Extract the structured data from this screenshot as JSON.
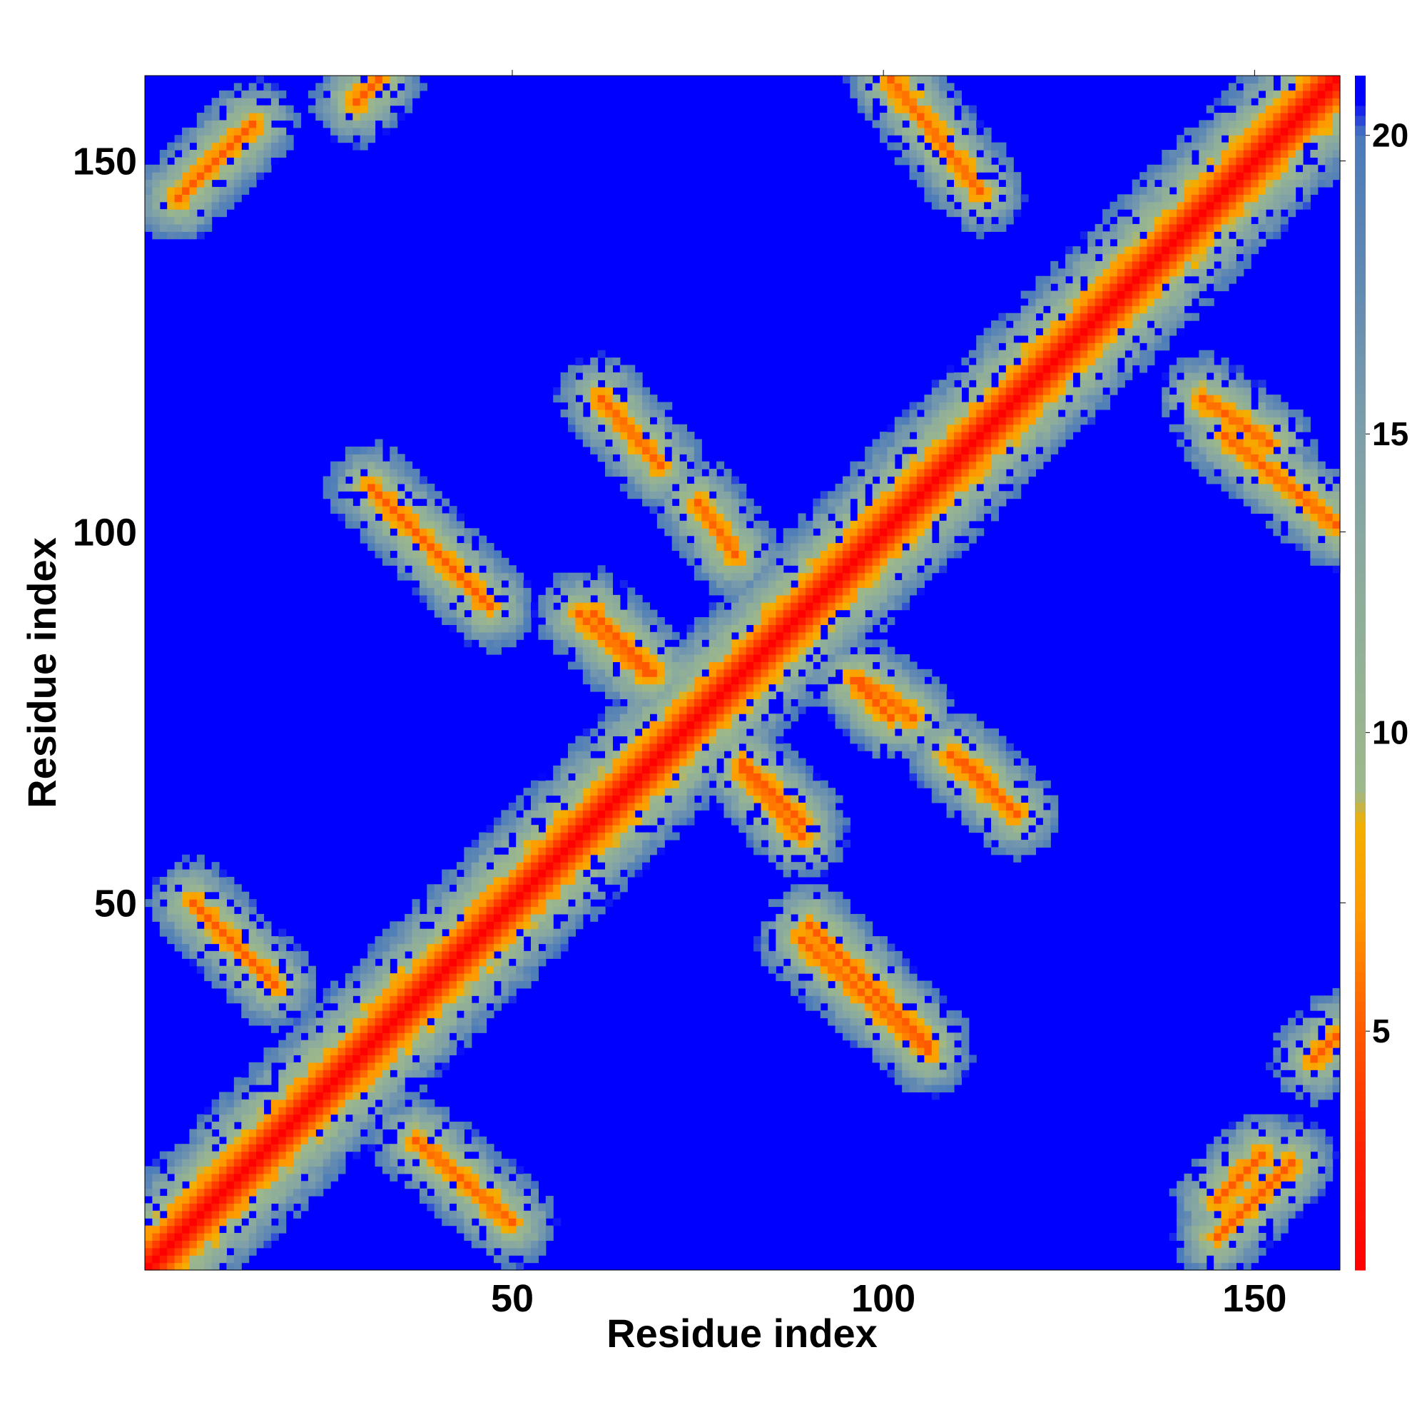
{
  "chart_data": {
    "type": "heatmap",
    "title": "",
    "xlabel": "Residue index",
    "ylabel": "Residue index",
    "x_range": [
      1,
      161
    ],
    "y_range": [
      1,
      161
    ],
    "x_ticks": [
      50,
      100,
      150
    ],
    "y_ticks": [
      50,
      100,
      150
    ],
    "x_tick_labels": [
      "50",
      "100",
      "150"
    ],
    "y_tick_labels": [
      "50",
      "100",
      "150"
    ],
    "grid": false,
    "legend": "colorbar at right",
    "colorbar": {
      "range": [
        1,
        21
      ],
      "ticks": [
        5,
        10,
        15,
        20
      ],
      "tick_labels": [
        "5",
        "10",
        "15",
        "20"
      ],
      "stops": [
        {
          "value": 1,
          "color": "#ff0000"
        },
        {
          "value": 3,
          "color": "#ff2200"
        },
        {
          "value": 5,
          "color": "#ff5a00"
        },
        {
          "value": 7,
          "color": "#ff9a00"
        },
        {
          "value": 8.5,
          "color": "#f2b000"
        },
        {
          "value": 9,
          "color": "#9db88a"
        },
        {
          "value": 12,
          "color": "#8fae9a"
        },
        {
          "value": 15,
          "color": "#7d9faa"
        },
        {
          "value": 18,
          "color": "#5d86b3"
        },
        {
          "value": 20,
          "color": "#4a7bbb"
        },
        {
          "value": 20.6,
          "color": "#0000ff"
        },
        {
          "value": 21,
          "color": "#0000ff"
        }
      ]
    },
    "contact_bands": [
      {
        "kind": "diagonal",
        "from": [
          1,
          1
        ],
        "to": [
          161,
          161
        ],
        "min_value": 1
      },
      {
        "kind": "anti",
        "from": [
          7,
          50
        ],
        "to": [
          18,
          39
        ],
        "min_value": 5
      },
      {
        "kind": "anti",
        "from": [
          37,
          18
        ],
        "to": [
          50,
          7
        ],
        "min_value": 5
      },
      {
        "kind": "anti",
        "from": [
          31,
          106
        ],
        "to": [
          47,
          90
        ],
        "min_value": 5
      },
      {
        "kind": "anti",
        "from": [
          90,
          47
        ],
        "to": [
          106,
          31
        ],
        "min_value": 5
      },
      {
        "kind": "anti",
        "from": [
          62,
          118
        ],
        "to": [
          70,
          109
        ],
        "min_value": 5
      },
      {
        "kind": "anti",
        "from": [
          109,
          70
        ],
        "to": [
          118,
          62
        ],
        "min_value": 5
      },
      {
        "kind": "anti",
        "from": [
          61,
          89
        ],
        "to": [
          69,
          81
        ],
        "min_value": 5
      },
      {
        "kind": "anti",
        "from": [
          81,
          69
        ],
        "to": [
          89,
          61
        ],
        "min_value": 5
      },
      {
        "kind": "anti",
        "from": [
          75,
          104
        ],
        "to": [
          80,
          97
        ],
        "min_value": 5
      },
      {
        "kind": "anti",
        "from": [
          97,
          80
        ],
        "to": [
          104,
          75
        ],
        "min_value": 5
      },
      {
        "kind": "anti",
        "from": [
          81,
          68
        ],
        "to": [
          89,
          59
        ],
        "min_value": 5
      },
      {
        "kind": "anti",
        "from": [
          59,
          89
        ],
        "to": [
          68,
          81
        ],
        "min_value": 5
      },
      {
        "kind": "anti",
        "from": [
          96,
          80
        ],
        "to": [
          101,
          75
        ],
        "min_value": 5
      },
      {
        "kind": "anti",
        "from": [
          111,
          69
        ],
        "to": [
          118,
          62
        ],
        "min_value": 5
      },
      {
        "kind": "anti",
        "from": [
          89,
          45
        ],
        "to": [
          106,
          30
        ],
        "min_value": 5
      },
      {
        "kind": "anti",
        "from": [
          101,
          161
        ],
        "to": [
          113,
          146
        ],
        "min_value": 5
      },
      {
        "kind": "anti",
        "from": [
          146,
          113
        ],
        "to": [
          161,
          101
        ],
        "min_value": 5
      },
      {
        "kind": "anti",
        "from": [
          143,
          118
        ],
        "to": [
          152,
          112
        ],
        "min_value": 5
      },
      {
        "kind": "parallel",
        "from": [
          5,
          145
        ],
        "to": [
          15,
          155
        ],
        "min_value": 5
      },
      {
        "kind": "parallel",
        "from": [
          145,
          5
        ],
        "to": [
          155,
          15
        ],
        "min_value": 5
      },
      {
        "kind": "parallel",
        "from": [
          145,
          10
        ],
        "to": [
          151,
          16
        ],
        "min_value": 5
      },
      {
        "kind": "parallel",
        "from": [
          158,
          29
        ],
        "to": [
          161,
          32
        ],
        "min_value": 5
      },
      {
        "kind": "parallel",
        "from": [
          29,
          158
        ],
        "to": [
          32,
          161
        ],
        "min_value": 5
      }
    ]
  }
}
